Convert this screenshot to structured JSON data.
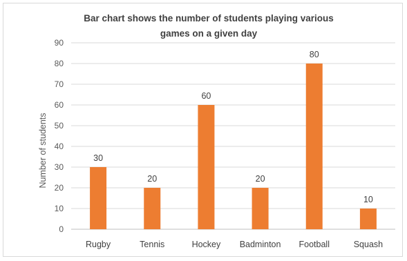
{
  "chart_data": {
    "type": "bar",
    "title_lines": [
      "Bar chart shows the number of students playing various",
      "games on a given day"
    ],
    "xlabel": "",
    "ylabel": "Number of students",
    "categories": [
      "Rugby",
      "Tennis",
      "Hockey",
      "Badminton",
      "Football",
      "Squash"
    ],
    "values": [
      30,
      20,
      60,
      20,
      80,
      10
    ],
    "data_labels": [
      "30",
      "20",
      "60",
      "20",
      "80",
      "10"
    ],
    "ylim": [
      0,
      90
    ],
    "yticks": [
      0,
      10,
      20,
      30,
      40,
      50,
      60,
      70,
      80,
      90
    ],
    "ytick_labels": [
      "0",
      "10",
      "20",
      "30",
      "40",
      "50",
      "60",
      "70",
      "80",
      "90"
    ],
    "grid": true,
    "legend": "none",
    "colors": {
      "bar": "#ed7d31"
    }
  }
}
